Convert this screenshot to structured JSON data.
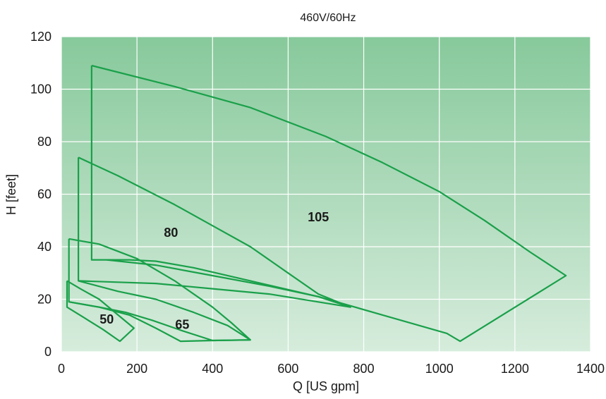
{
  "chart_data": {
    "type": "line",
    "title": "460V/60Hz",
    "xlabel": "Q [US gpm]",
    "ylabel": "H [feet]",
    "xlim": [
      0,
      1400
    ],
    "ylim": [
      0,
      120
    ],
    "x_ticks": [
      0,
      200,
      400,
      600,
      800,
      1000,
      1200,
      1400
    ],
    "y_ticks": [
      0,
      20,
      40,
      60,
      80,
      100,
      120
    ],
    "grid": true,
    "background_gradient": [
      "#87c99b",
      "#d6ecdc"
    ],
    "line_color": "#1aa04a",
    "series": [
      {
        "label": "105",
        "label_pos": [
          680,
          51
        ],
        "points": [
          [
            80,
            109
          ],
          [
            300,
            101
          ],
          [
            500,
            93
          ],
          [
            700,
            82
          ],
          [
            850,
            72
          ],
          [
            1000,
            61
          ],
          [
            1120,
            50
          ],
          [
            1240,
            38
          ],
          [
            1335,
            29
          ],
          [
            1055,
            4
          ],
          [
            1020,
            7
          ],
          [
            850,
            14
          ],
          [
            680,
            21
          ],
          [
            500,
            27
          ],
          [
            350,
            32
          ],
          [
            250,
            34.5
          ],
          [
            180,
            35
          ],
          [
            120,
            35
          ],
          [
            80,
            35
          ],
          [
            80,
            109
          ]
        ]
      },
      {
        "label": "80",
        "label_pos": [
          290,
          45
        ],
        "points": [
          [
            45,
            74
          ],
          [
            150,
            67
          ],
          [
            300,
            56
          ],
          [
            400,
            48
          ],
          [
            500,
            40
          ],
          [
            600,
            30
          ],
          [
            680,
            22
          ],
          [
            765,
            17
          ],
          [
            550,
            22
          ],
          [
            400,
            24
          ],
          [
            250,
            26
          ],
          [
            150,
            26.5
          ],
          [
            45,
            27
          ],
          [
            45,
            74
          ]
        ]
      },
      {
        "label": "65",
        "label_pos": [
          320,
          10
        ],
        "points": [
          [
            20,
            43
          ],
          [
            100,
            41
          ],
          [
            200,
            35.5
          ],
          [
            300,
            27
          ],
          [
            400,
            17
          ],
          [
            450,
            11
          ],
          [
            500,
            4.5
          ],
          [
            400,
            4.3
          ],
          [
            315,
            4
          ],
          [
            250,
            9
          ],
          [
            180,
            14
          ],
          [
            100,
            17
          ],
          [
            20,
            19
          ],
          [
            20,
            43
          ]
        ]
      },
      {
        "label": "50",
        "label_pos": [
          120,
          12
        ],
        "points": [
          [
            15,
            27
          ],
          [
            50,
            24
          ],
          [
            100,
            20
          ],
          [
            150,
            14
          ],
          [
            192,
            9
          ],
          [
            155,
            4
          ],
          [
            110,
            8.5
          ],
          [
            60,
            13
          ],
          [
            15,
            17
          ],
          [
            15,
            27
          ]
        ]
      }
    ],
    "extra_curves": [
      {
        "points": [
          [
            120,
            35
          ],
          [
            250,
            33
          ],
          [
            400,
            29
          ],
          [
            550,
            25
          ],
          [
            680,
            21
          ],
          [
            765,
            17
          ]
        ]
      },
      {
        "points": [
          [
            45,
            27
          ],
          [
            150,
            23
          ],
          [
            250,
            20
          ],
          [
            350,
            15
          ],
          [
            440,
            10
          ],
          [
            500,
            4.5
          ]
        ]
      },
      {
        "points": [
          [
            20,
            19
          ],
          [
            100,
            17
          ],
          [
            170,
            15
          ],
          [
            240,
            12
          ],
          [
            320,
            8
          ],
          [
            400,
            4.3
          ],
          [
            500,
            4.5
          ]
        ]
      }
    ]
  }
}
